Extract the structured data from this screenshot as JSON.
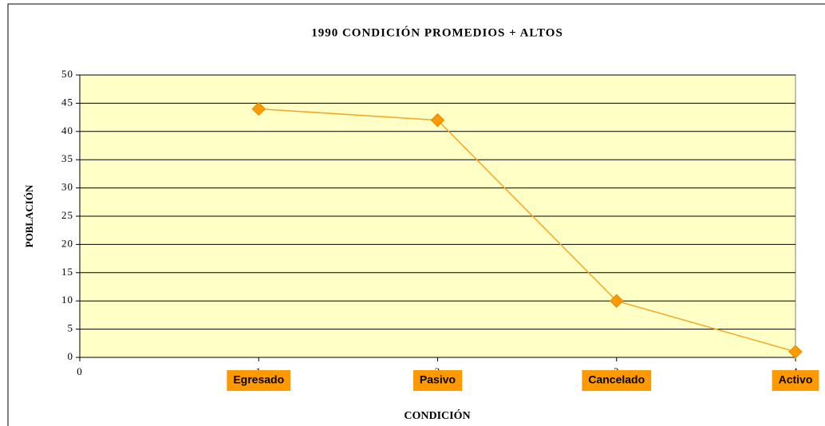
{
  "chart_data": {
    "type": "line",
    "title": "1990 CONDICIÓN PROMEDIOS + ALTOS",
    "x_label": "CONDICIÓN",
    "y_label": "POBLACIÓN",
    "x": [
      1,
      2,
      3,
      4
    ],
    "categories": [
      "Egresado",
      "Pasivo",
      "Cancelado",
      "Activo"
    ],
    "values": [
      44,
      42,
      10,
      1
    ],
    "color": "#f5a623",
    "marker_color": "#ff9900",
    "plot_background": "#ffffc6",
    "xlim": [
      0,
      4
    ],
    "xticks": [
      0,
      1,
      2,
      3,
      4
    ],
    "ylim": [
      0,
      50
    ],
    "yticks": [
      0,
      5,
      10,
      15,
      20,
      25,
      30,
      35,
      40,
      45,
      50
    ],
    "grid": true
  }
}
